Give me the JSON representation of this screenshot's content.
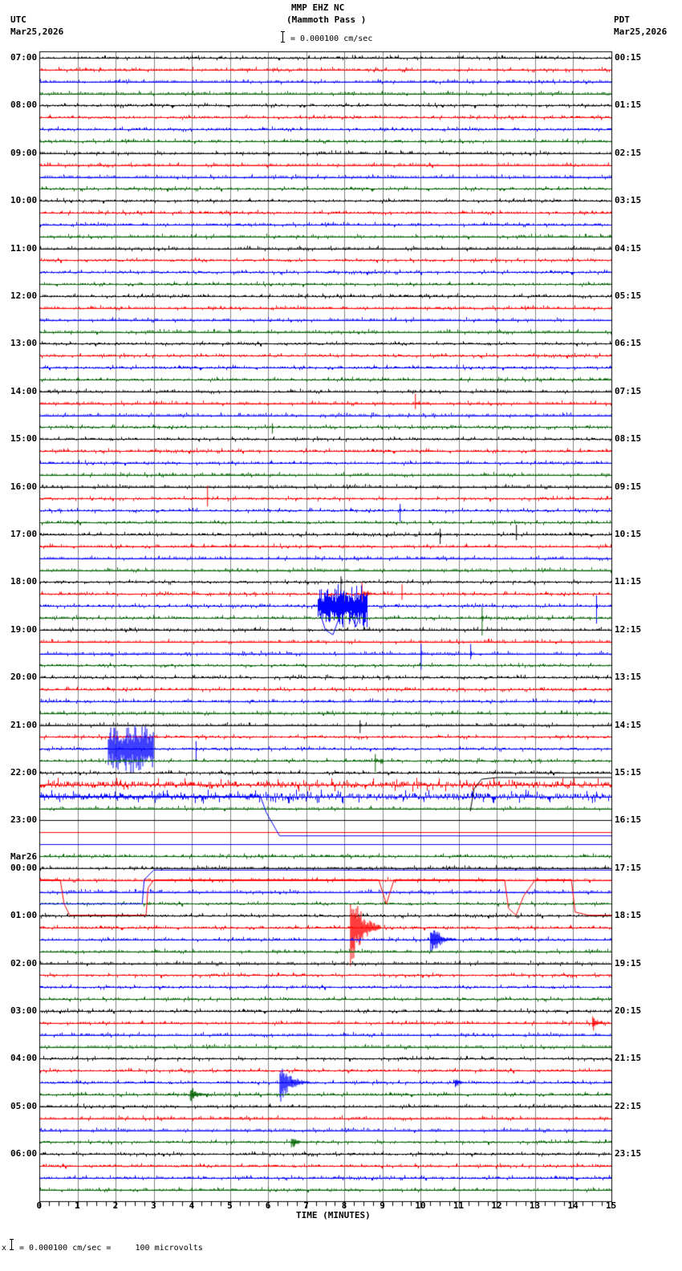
{
  "header": {
    "station": "MMP EHZ NC",
    "location": "(Mammoth Pass )",
    "scale_text": "= 0.000100 cm/sec",
    "left_tz": "UTC",
    "left_date": "Mar25,2026",
    "right_tz": "PDT",
    "right_date": "Mar25,2026"
  },
  "footer": {
    "xlabel": "TIME (MINUTES)",
    "scale_prefix": "x",
    "scale_text": "= 0.000100 cm/sec =     100 microvolts"
  },
  "colors": {
    "trace_cycle": [
      "#000000",
      "#ff0000",
      "#0000ff",
      "#006400"
    ],
    "grid": "#808080",
    "frame": "#000000"
  },
  "chart_data": {
    "type": "line",
    "title": "MMP EHZ NC (Mammoth Pass )",
    "xlabel": "TIME (MINUTES)",
    "ylabel": "",
    "xlim": [
      0,
      15
    ],
    "x_ticks": [
      0,
      1,
      2,
      3,
      4,
      5,
      6,
      7,
      8,
      9,
      10,
      11,
      12,
      13,
      14,
      15
    ],
    "grid": true,
    "traces_per_hour": 4,
    "trace_minutes": 15,
    "left_labels": [
      {
        "row": 0,
        "text": "07:00"
      },
      {
        "row": 4,
        "text": "08:00"
      },
      {
        "row": 8,
        "text": "09:00"
      },
      {
        "row": 12,
        "text": "10:00"
      },
      {
        "row": 16,
        "text": "11:00"
      },
      {
        "row": 20,
        "text": "12:00"
      },
      {
        "row": 24,
        "text": "13:00"
      },
      {
        "row": 28,
        "text": "14:00"
      },
      {
        "row": 32,
        "text": "15:00"
      },
      {
        "row": 36,
        "text": "16:00"
      },
      {
        "row": 40,
        "text": "17:00"
      },
      {
        "row": 44,
        "text": "18:00"
      },
      {
        "row": 48,
        "text": "19:00"
      },
      {
        "row": 52,
        "text": "20:00"
      },
      {
        "row": 56,
        "text": "21:00"
      },
      {
        "row": 60,
        "text": "22:00"
      },
      {
        "row": 64,
        "text": "23:00"
      },
      {
        "row": 68,
        "text": "00:00",
        "date": "Mar26"
      },
      {
        "row": 72,
        "text": "01:00"
      },
      {
        "row": 76,
        "text": "02:00"
      },
      {
        "row": 80,
        "text": "03:00"
      },
      {
        "row": 84,
        "text": "04:00"
      },
      {
        "row": 88,
        "text": "05:00"
      },
      {
        "row": 92,
        "text": "06:00"
      }
    ],
    "right_labels": [
      {
        "row": 0,
        "text": "00:15"
      },
      {
        "row": 4,
        "text": "01:15"
      },
      {
        "row": 8,
        "text": "02:15"
      },
      {
        "row": 12,
        "text": "03:15"
      },
      {
        "row": 16,
        "text": "04:15"
      },
      {
        "row": 20,
        "text": "05:15"
      },
      {
        "row": 24,
        "text": "06:15"
      },
      {
        "row": 28,
        "text": "07:15"
      },
      {
        "row": 32,
        "text": "08:15"
      },
      {
        "row": 36,
        "text": "09:15"
      },
      {
        "row": 40,
        "text": "10:15"
      },
      {
        "row": 44,
        "text": "11:15"
      },
      {
        "row": 48,
        "text": "12:15"
      },
      {
        "row": 52,
        "text": "13:15"
      },
      {
        "row": 56,
        "text": "14:15"
      },
      {
        "row": 60,
        "text": "15:15"
      },
      {
        "row": 64,
        "text": "16:15"
      },
      {
        "row": 68,
        "text": "17:15"
      },
      {
        "row": 72,
        "text": "18:15"
      },
      {
        "row": 76,
        "text": "19:15"
      },
      {
        "row": 80,
        "text": "20:15"
      },
      {
        "row": 84,
        "text": "21:15"
      },
      {
        "row": 88,
        "text": "22:15"
      },
      {
        "row": 92,
        "text": "23:15"
      }
    ],
    "total_rows": 96,
    "events": [
      {
        "row": 29,
        "minute": 9.85,
        "amp": 12,
        "dur": 0.15,
        "kind": "spike"
      },
      {
        "row": 31,
        "minute": 6.1,
        "amp": 8,
        "dur": 0.05,
        "kind": "spike"
      },
      {
        "row": 37,
        "minute": 4.4,
        "amp": 16,
        "dur": 0.05,
        "kind": "spike"
      },
      {
        "row": 38,
        "minute": 9.45,
        "amp": 14,
        "dur": 0.05,
        "kind": "spike"
      },
      {
        "row": 40,
        "minute": 10.5,
        "amp": 12,
        "dur": 0.05,
        "kind": "spike"
      },
      {
        "row": 40,
        "minute": 12.5,
        "amp": 12,
        "dur": 0.05,
        "kind": "spike"
      },
      {
        "row": 44,
        "minute": 7.9,
        "amp": 12,
        "dur": 0.05,
        "kind": "spike"
      },
      {
        "row": 45,
        "minute": 8.45,
        "amp": 14,
        "dur": 0.3,
        "kind": "spike"
      },
      {
        "row": 45,
        "minute": 9.5,
        "amp": 12,
        "dur": 0.05,
        "kind": "spike"
      },
      {
        "row": 46,
        "minute": 7.3,
        "amp": 28,
        "dur": 1.3,
        "kind": "burst"
      },
      {
        "row": 46,
        "minute": 14.6,
        "amp": 22,
        "dur": 0.05,
        "kind": "spike"
      },
      {
        "row": 47,
        "minute": 11.6,
        "amp": 22,
        "dur": 0.05,
        "kind": "spike"
      },
      {
        "row": 50,
        "minute": 10.0,
        "amp": 20,
        "dur": 0.05,
        "kind": "spike"
      },
      {
        "row": 50,
        "minute": 11.3,
        "amp": 12,
        "dur": 0.05,
        "kind": "spike"
      },
      {
        "row": 56,
        "minute": 8.4,
        "amp": 10,
        "dur": 0.05,
        "kind": "spike"
      },
      {
        "row": 58,
        "minute": 1.8,
        "amp": 30,
        "dur": 1.2,
        "kind": "burst"
      },
      {
        "row": 58,
        "minute": 4.1,
        "amp": 16,
        "dur": 0.05,
        "kind": "spike"
      },
      {
        "row": 59,
        "minute": 8.8,
        "amp": 14,
        "dur": 0.2,
        "kind": "spike"
      },
      {
        "row": 73,
        "minute": 8.15,
        "amp": 55,
        "dur": 0.8,
        "kind": "quake"
      },
      {
        "row": 74,
        "minute": 10.25,
        "amp": 22,
        "dur": 0.7,
        "kind": "quake"
      },
      {
        "row": 81,
        "minute": 14.5,
        "amp": 14,
        "dur": 0.3,
        "kind": "quake"
      },
      {
        "row": 86,
        "minute": 6.3,
        "amp": 26,
        "dur": 0.8,
        "kind": "quake"
      },
      {
        "row": 86,
        "minute": 10.9,
        "amp": 8,
        "dur": 0.3,
        "kind": "quake"
      },
      {
        "row": 87,
        "minute": 3.95,
        "amp": 12,
        "dur": 0.5,
        "kind": "quake"
      },
      {
        "row": 91,
        "minute": 6.6,
        "amp": 10,
        "dur": 0.4,
        "kind": "quake"
      }
    ],
    "flat_rows": [
      64,
      65,
      66
    ],
    "noisy_rows": [
      61,
      62
    ]
  }
}
